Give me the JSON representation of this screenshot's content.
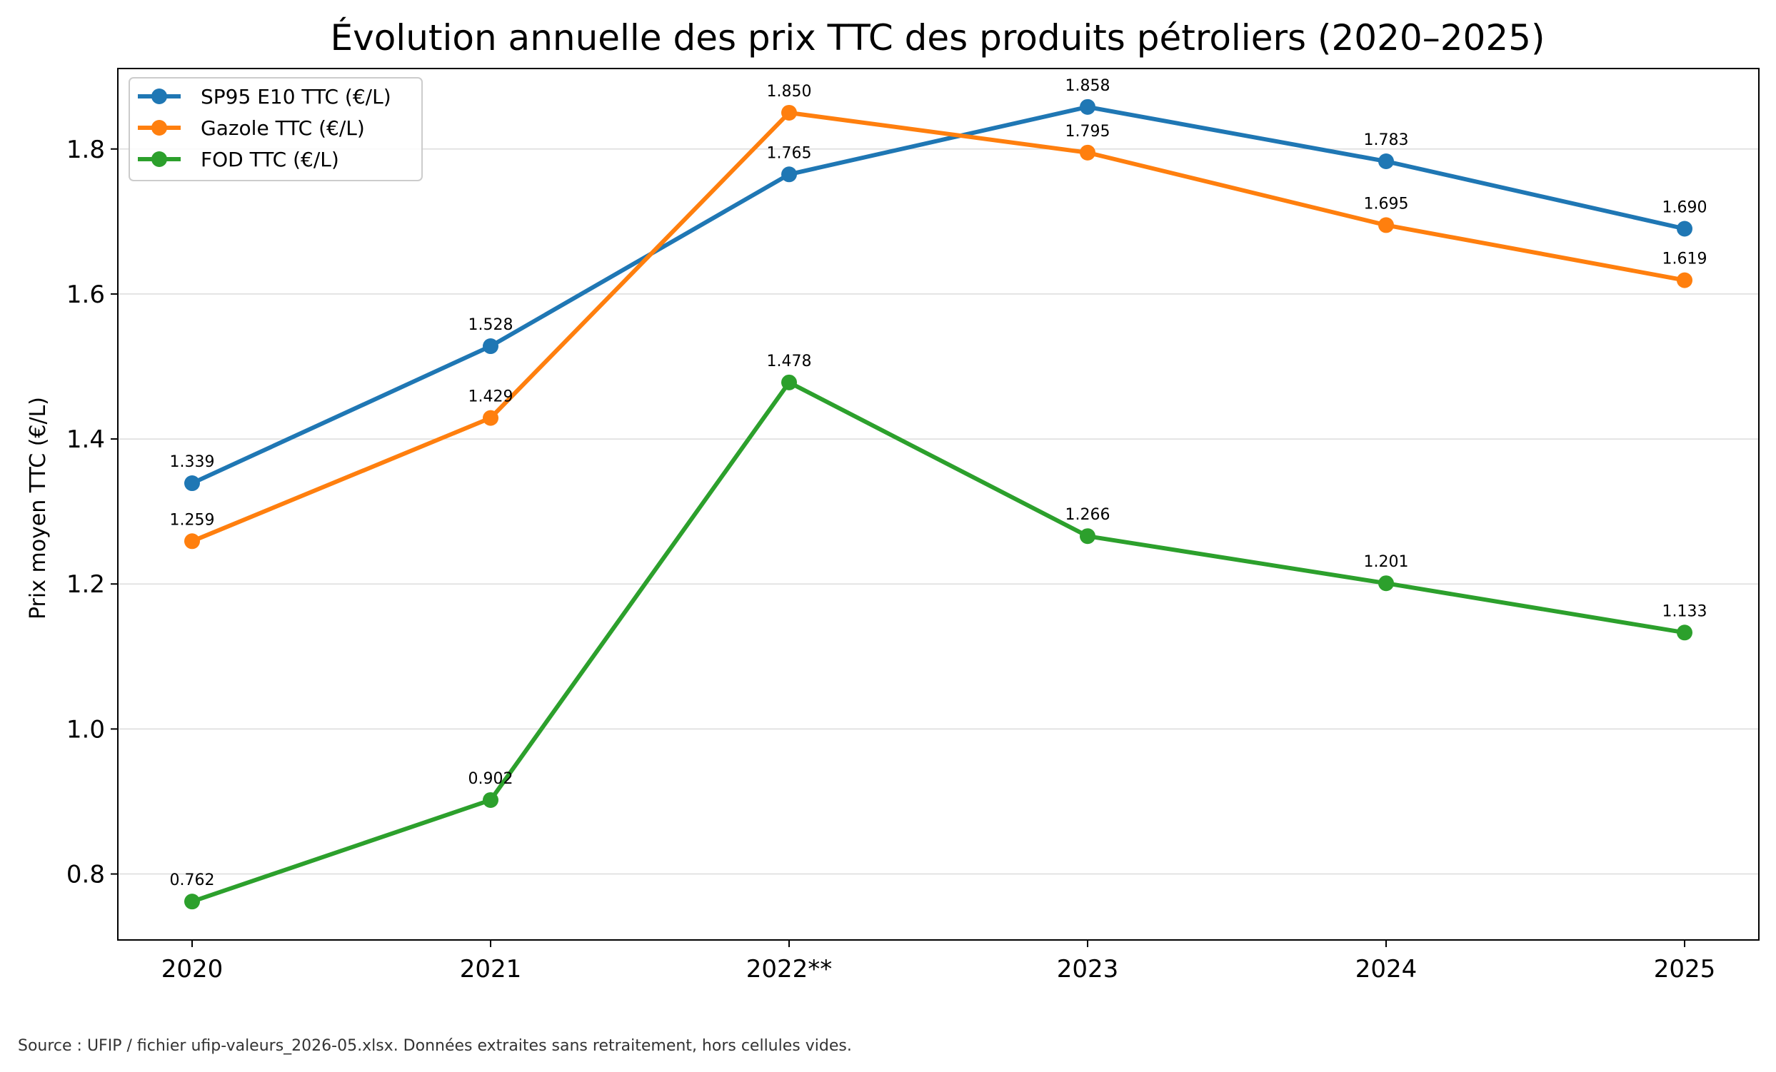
{
  "chart_data": {
    "type": "line",
    "title": "Évolution annuelle des prix TTC des produits pétroliers (2020–2025)",
    "xlabel": "",
    "ylabel": "Prix moyen TTC (€/L)",
    "categories": [
      "2020",
      "2021",
      "2022**",
      "2023",
      "2024",
      "2025"
    ],
    "ylim": [
      0.709,
      1.911
    ],
    "yticks": [
      0.8,
      1.0,
      1.2,
      1.4,
      1.6,
      1.8
    ],
    "ytick_labels": [
      "0.8",
      "1.0",
      "1.2",
      "1.4",
      "1.6",
      "1.8"
    ],
    "grid": "horizontal",
    "legend_position": "top-left",
    "series": [
      {
        "name": "SP95 E10 TTC (€/L)",
        "color": "#1f77b4",
        "values": [
          1.339,
          1.528,
          1.765,
          1.858,
          1.783,
          1.69
        ],
        "labels": [
          "1.339",
          "1.528",
          "1.765",
          "1.858",
          "1.783",
          "1.690"
        ]
      },
      {
        "name": "Gazole TTC (€/L)",
        "color": "#ff7f0e",
        "values": [
          1.259,
          1.429,
          1.85,
          1.795,
          1.695,
          1.619
        ],
        "labels": [
          "1.259",
          "1.429",
          "1.850",
          "1.795",
          "1.695",
          "1.619"
        ]
      },
      {
        "name": "FOD TTC (€/L)",
        "color": "#2ca02c",
        "values": [
          0.762,
          0.902,
          1.478,
          1.266,
          1.201,
          1.133
        ],
        "labels": [
          "0.762",
          "0.902",
          "1.478",
          "1.266",
          "1.201",
          "1.133"
        ]
      }
    ]
  },
  "source_note": "Source : UFIP / fichier ufip-valeurs_2026-05.xlsx. Données extraites sans retraitement, hors cellules vides."
}
